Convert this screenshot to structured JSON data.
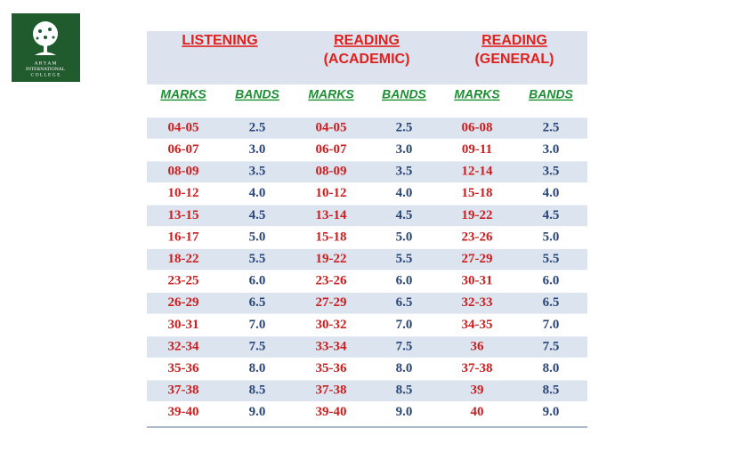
{
  "logo": {
    "lines": [
      "A R Y A M",
      "INTERNATIONAL",
      "C O L L E G E"
    ]
  },
  "table": {
    "headers": [
      [
        "LISTENING"
      ],
      [
        "READING",
        "(ACADEMIC)"
      ],
      [
        "READING",
        "(GENERAL)"
      ]
    ],
    "subheaders": [
      "MARKS",
      "BANDS",
      "MARKS",
      "BANDS",
      "MARKS",
      "BANDS"
    ],
    "rows": [
      [
        "04-05",
        "2.5",
        "04-05",
        "2.5",
        "06-08",
        "2.5"
      ],
      [
        "06-07",
        "3.0",
        "06-07",
        "3.0",
        "09-11",
        "3.0"
      ],
      [
        "08-09",
        "3.5",
        "08-09",
        "3.5",
        "12-14",
        "3.5"
      ],
      [
        "10-12",
        "4.0",
        "10-12",
        "4.0",
        "15-18",
        "4.0"
      ],
      [
        "13-15",
        "4.5",
        "13-14",
        "4.5",
        "19-22",
        "4.5"
      ],
      [
        "16-17",
        "5.0",
        "15-18",
        "5.0",
        "23-26",
        "5.0"
      ],
      [
        "18-22",
        "5.5",
        "19-22",
        "5.5",
        "27-29",
        "5.5"
      ],
      [
        "23-25",
        "6.0",
        "23-26",
        "6.0",
        "30-31",
        "6.0"
      ],
      [
        "26-29",
        "6.5",
        "27-29",
        "6.5",
        "32-33",
        "6.5"
      ],
      [
        "30-31",
        "7.0",
        "30-32",
        "7.0",
        "34-35",
        "7.0"
      ],
      [
        "32-34",
        "7.5",
        "33-34",
        "7.5",
        "36",
        "7.5"
      ],
      [
        "35-36",
        "8.0",
        "35-36",
        "8.0",
        "37-38",
        "8.0"
      ],
      [
        "37-38",
        "8.5",
        "37-38",
        "8.5",
        "39",
        "8.5"
      ],
      [
        "39-40",
        "9.0",
        "39-40",
        "9.0",
        "40",
        "9.0"
      ]
    ]
  }
}
